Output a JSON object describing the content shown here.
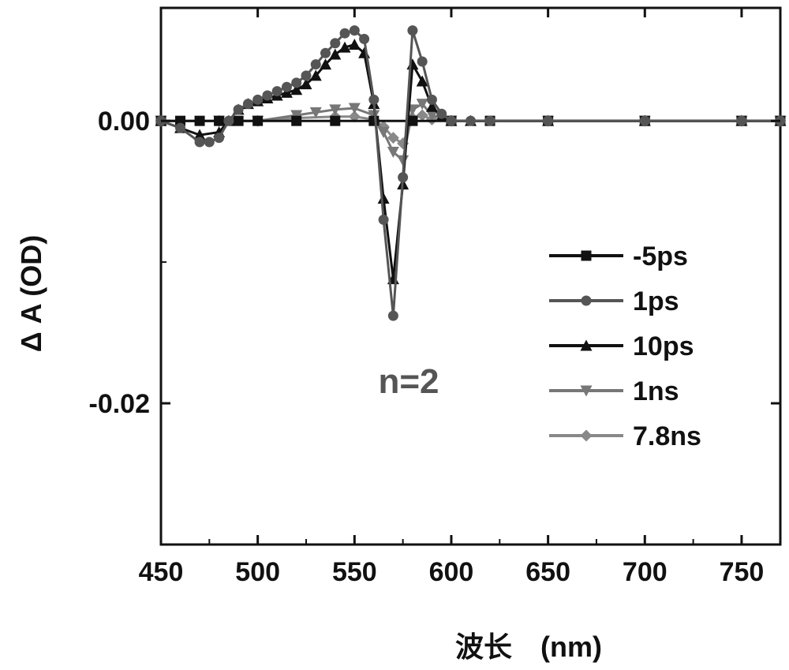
{
  "chart_data": {
    "type": "line",
    "xlabel": "波长　(nm)",
    "ylabel": "Δ A (OD)",
    "xlim": [
      450,
      770
    ],
    "ylim": [
      -0.03,
      0.008
    ],
    "x_ticks": [
      450,
      500,
      550,
      600,
      650,
      700,
      750
    ],
    "x_tick_labels": [
      "450",
      "500",
      "550",
      "600",
      "650",
      "700",
      "750"
    ],
    "y_ticks": [
      0.0,
      -0.02
    ],
    "y_tick_labels": [
      "0.00",
      "-0.02"
    ],
    "legend_position": "right",
    "annotation": "n=2",
    "grid": false,
    "series": [
      {
        "name": "-5ps",
        "marker": "square",
        "color": "#111111",
        "x": [
          450,
          460,
          470,
          480,
          490,
          500,
          520,
          540,
          560,
          580,
          600,
          620,
          650,
          700,
          750,
          770
        ],
        "y": [
          0.0,
          0.0,
          0.0,
          0.0,
          0.0,
          0.0,
          0.0,
          0.0,
          0.0,
          0.0,
          0.0,
          0.0,
          0.0,
          0.0,
          0.0,
          0.0
        ]
      },
      {
        "name": "1ps",
        "marker": "circle",
        "color": "#555555",
        "x": [
          450,
          460,
          470,
          475,
          480,
          485,
          490,
          495,
          500,
          505,
          510,
          515,
          520,
          525,
          530,
          535,
          540,
          545,
          550,
          555,
          560,
          565,
          570,
          575,
          580,
          585,
          590,
          595,
          600,
          610,
          620,
          650,
          700,
          750,
          770
        ],
        "y": [
          0.0,
          -0.0005,
          -0.0015,
          -0.0015,
          -0.0012,
          0.0,
          0.0008,
          0.0012,
          0.0015,
          0.0018,
          0.0021,
          0.0024,
          0.0027,
          0.0032,
          0.004,
          0.0048,
          0.0055,
          0.0062,
          0.0064,
          0.0058,
          0.0015,
          -0.007,
          -0.0138,
          -0.004,
          0.0064,
          0.0042,
          0.0015,
          0.0005,
          0.0,
          0.0,
          0.0,
          0.0,
          0.0,
          0.0,
          0.0
        ]
      },
      {
        "name": "10ps",
        "marker": "triangle-up",
        "color": "#111111",
        "x": [
          450,
          460,
          470,
          480,
          485,
          490,
          495,
          500,
          505,
          510,
          515,
          520,
          525,
          530,
          535,
          540,
          545,
          550,
          555,
          560,
          565,
          570,
          575,
          580,
          585,
          590,
          595,
          600,
          610,
          650,
          700,
          750,
          770
        ],
        "y": [
          0.0,
          -0.0005,
          -0.001,
          -0.0008,
          0.0,
          0.0008,
          0.0012,
          0.0014,
          0.0016,
          0.0018,
          0.002,
          0.0022,
          0.0026,
          0.0032,
          0.004,
          0.0047,
          0.0052,
          0.0054,
          0.0048,
          0.0012,
          -0.0055,
          -0.0112,
          -0.0045,
          0.004,
          0.0028,
          0.001,
          0.0003,
          0.0,
          0.0,
          0.0,
          0.0,
          0.0,
          0.0
        ]
      },
      {
        "name": "1ns",
        "marker": "triangle-down",
        "color": "#777777",
        "x": [
          450,
          480,
          500,
          520,
          530,
          540,
          550,
          560,
          565,
          570,
          575,
          580,
          585,
          590,
          600,
          650,
          700,
          750,
          770
        ],
        "y": [
          0.0,
          0.0,
          0.0,
          0.0004,
          0.0006,
          0.0008,
          0.0009,
          0.0004,
          -0.0008,
          -0.0022,
          -0.0028,
          0.0008,
          0.0012,
          0.0004,
          0.0,
          0.0,
          0.0,
          0.0,
          0.0
        ]
      },
      {
        "name": "7.8ns",
        "marker": "diamond",
        "color": "#888888",
        "x": [
          450,
          480,
          500,
          520,
          540,
          550,
          560,
          565,
          570,
          575,
          580,
          585,
          590,
          600,
          650,
          700,
          750,
          770
        ],
        "y": [
          0.0,
          0.0,
          0.0,
          0.0002,
          0.0003,
          0.0003,
          0.0001,
          -0.0004,
          -0.0012,
          -0.0016,
          0.0002,
          0.0004,
          0.0001,
          0.0,
          0.0,
          0.0,
          0.0,
          0.0
        ]
      }
    ]
  }
}
